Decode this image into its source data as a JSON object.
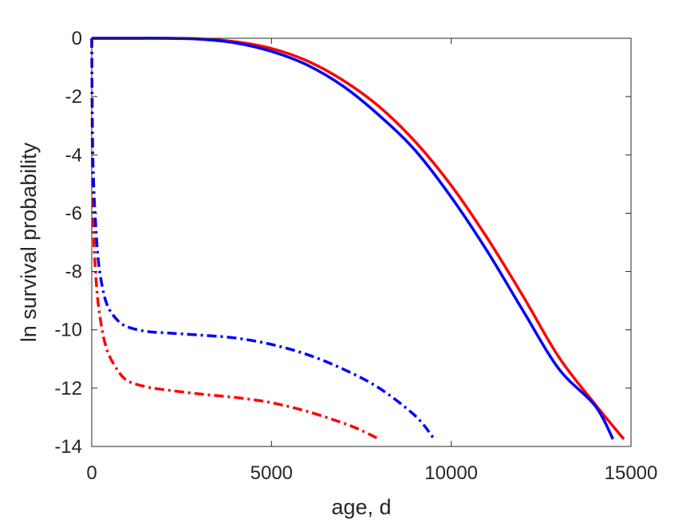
{
  "chart_data": {
    "type": "line",
    "xlabel": "age, d",
    "ylabel": "ln survival probability",
    "xlim": [
      0,
      15000
    ],
    "ylim": [
      -14,
      0
    ],
    "xticks": [
      0,
      5000,
      10000,
      15000
    ],
    "yticks": [
      0,
      -2,
      -4,
      -6,
      -8,
      -10,
      -12,
      -14
    ],
    "grid": false,
    "legend": "none",
    "series": [
      {
        "color": "#ff0000",
        "style": "solid",
        "x": [
          0,
          1000,
          2000,
          3000,
          4000,
          5000,
          6000,
          7000,
          8000,
          9000,
          10000,
          11000,
          12000,
          13000,
          14000,
          14800
        ],
        "y": [
          0,
          0,
          0,
          -0.02,
          -0.12,
          -0.35,
          -0.78,
          -1.45,
          -2.35,
          -3.55,
          -5.05,
          -6.85,
          -8.85,
          -10.95,
          -12.55,
          -13.75
        ]
      },
      {
        "color": "#0000ff",
        "style": "solid",
        "x": [
          0,
          1000,
          2000,
          3000,
          4000,
          5000,
          6000,
          7000,
          8000,
          9000,
          10000,
          11000,
          12000,
          13000,
          14000,
          14500
        ],
        "y": [
          0,
          0,
          0,
          -0.03,
          -0.16,
          -0.45,
          -0.92,
          -1.65,
          -2.65,
          -3.85,
          -5.45,
          -7.3,
          -9.35,
          -11.35,
          -12.6,
          -13.75
        ]
      },
      {
        "color": "#ff0000",
        "style": "dashdot",
        "x": [
          0,
          20,
          50,
          100,
          200,
          400,
          700,
          1000,
          1500,
          2000,
          3000,
          4000,
          5000,
          6000,
          7000,
          7500,
          8000
        ],
        "y": [
          0,
          -4.5,
          -6.6,
          -7.9,
          -9.3,
          -10.6,
          -11.35,
          -11.75,
          -11.95,
          -12.05,
          -12.2,
          -12.32,
          -12.5,
          -12.8,
          -13.2,
          -13.45,
          -13.75
        ]
      },
      {
        "color": "#0000ff",
        "style": "dashdot",
        "x": [
          0,
          20,
          50,
          100,
          200,
          400,
          700,
          1000,
          1500,
          2000,
          3000,
          4000,
          5000,
          6000,
          7000,
          8000,
          9000,
          9500
        ],
        "y": [
          0,
          -3.3,
          -4.9,
          -6.2,
          -7.8,
          -9.05,
          -9.65,
          -9.9,
          -10.05,
          -10.1,
          -10.18,
          -10.28,
          -10.5,
          -10.85,
          -11.35,
          -12.0,
          -12.95,
          -13.7
        ]
      }
    ]
  }
}
